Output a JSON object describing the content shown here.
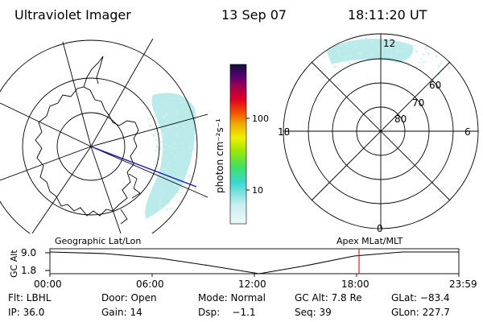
{
  "header": {
    "instrument": "Ultraviolet Imager",
    "date": "13 Sep 07",
    "time": "18:11:20 UT"
  },
  "colorbar": {
    "label": "photon cm⁻²s⁻¹",
    "ticks": [
      "100",
      "10"
    ]
  },
  "right_panel": {
    "mlt_labels": [
      "12",
      "18",
      "6",
      "0"
    ],
    "lat_labels": [
      "60",
      "70",
      "80"
    ]
  },
  "timeline": {
    "left_title": "Geographic Lat/Lon",
    "right_title": "Apex MLat/MLT",
    "y_label": "GC Alt",
    "y_ticks": [
      "9.0",
      "1.8"
    ],
    "x_ticks": [
      "00:00",
      "06:00",
      "12:00",
      "18:00",
      "23:59"
    ]
  },
  "status": {
    "flt": "Flt: LBHL",
    "ip": "IP: 36.0",
    "door": "Door: Open",
    "gain": "Gain: 14",
    "mode": "Mode: Normal",
    "dsp": "Dsp:    −1.1",
    "gc_alt": "GC Alt: 7.8 Re",
    "seq": "Seq: 39",
    "glat": "GLat: −83.4",
    "glon": "GLon: 227.7"
  },
  "colors": {
    "aurora": "#aee8e6",
    "track": "#000000",
    "marker": "#d62020",
    "lon_line": "#1a1aa8"
  }
}
